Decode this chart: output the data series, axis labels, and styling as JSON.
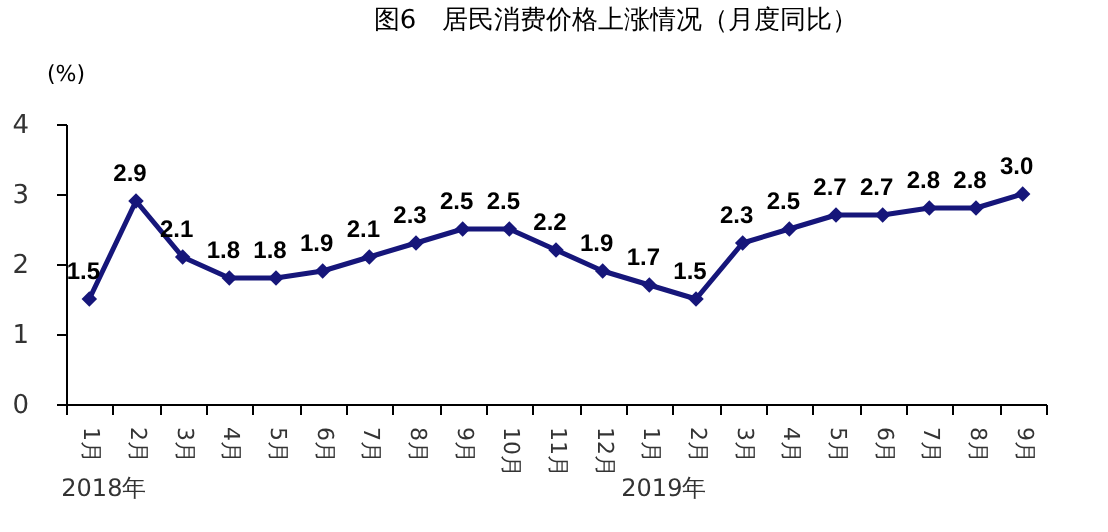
{
  "chart_data": {
    "type": "line",
    "title": "图6　居民消费价格上涨情况（月度同比）",
    "ylabel": "(%)",
    "categories": [
      "1月",
      "2月",
      "3月",
      "4月",
      "5月",
      "6月",
      "7月",
      "8月",
      "9月",
      "10月",
      "11月",
      "12月",
      "1月",
      "2月",
      "3月",
      "4月",
      "5月",
      "6月",
      "7月",
      "8月",
      "9月"
    ],
    "values": [
      1.5,
      2.9,
      2.1,
      1.8,
      1.8,
      1.9,
      2.1,
      2.3,
      2.5,
      2.5,
      2.2,
      1.9,
      1.7,
      1.5,
      2.3,
      2.5,
      2.7,
      2.7,
      2.8,
      2.8,
      3.0
    ],
    "color": "#16167a",
    "marker": "diamond",
    "line_style": "solid",
    "value_labels": [
      "1.5",
      "2.9",
      "2.1",
      "1.8",
      "1.8",
      "1.9",
      "2.1",
      "2.3",
      "2.5",
      "2.5",
      "2.2",
      "1.9",
      "1.7",
      "1.5",
      "2.3",
      "2.5",
      "2.7",
      "2.7",
      "2.8",
      "2.8",
      "3.0"
    ],
    "ylim": [
      0,
      4
    ],
    "yticks": [
      0,
      1,
      2,
      3,
      4
    ],
    "grid": false,
    "annotations": [
      "2018年",
      "2019年"
    ]
  }
}
